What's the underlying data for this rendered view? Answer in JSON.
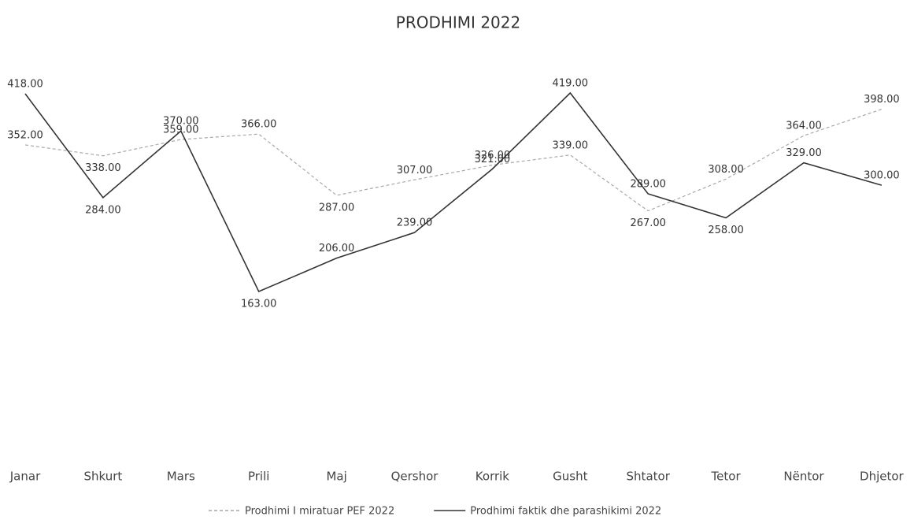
{
  "chart_data": {
    "type": "line",
    "title": "PRODHIMI 2022",
    "categories": [
      "Janar",
      "Shkurt",
      "Mars",
      "Prili",
      "Maj",
      "Qershor",
      "Korrik",
      "Gusht",
      "Shtator",
      "Tetor",
      "Nëntor",
      "Dhjetor"
    ],
    "series": [
      {
        "name": "Prodhimi I miratuar PEF 2022",
        "color": "#a8a8a8",
        "dashed": true,
        "values": [
          352,
          338,
          359,
          366,
          287,
          307,
          326,
          339,
          267,
          308,
          364,
          398
        ],
        "value_labels": [
          "352.00",
          "338.00",
          "359.00",
          "366.00",
          "287.00",
          "307.00",
          "326.00",
          "339.00",
          "267.00",
          "308.00",
          "364.00",
          "398.00"
        ]
      },
      {
        "name": "Prodhimi faktik dhe parashikimi 2022",
        "color": "#333333",
        "dashed": false,
        "values": [
          418,
          284,
          370,
          163,
          206,
          239,
          321,
          419,
          289,
          258,
          329,
          300
        ],
        "value_labels": [
          "418.00",
          "284.00",
          "370.00",
          "163.00",
          "206.00",
          "239.00",
          "321.00",
          "419.00",
          "289.00",
          "258.00",
          "329.00",
          "300.00"
        ]
      }
    ],
    "legend": "bottom"
  }
}
